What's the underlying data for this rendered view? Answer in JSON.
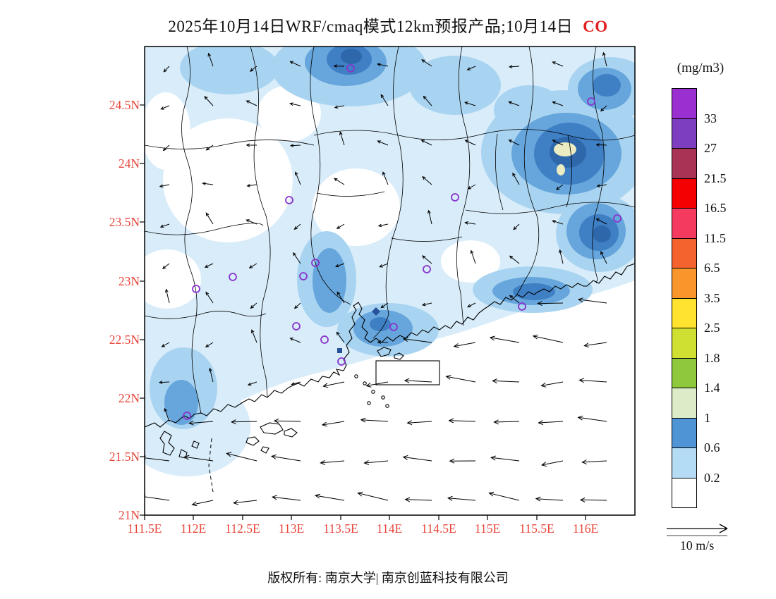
{
  "title": {
    "main": "2025年10月14日WRF/cmaq模式12km预报产品;10月14日",
    "pollutant": "CO"
  },
  "axes": {
    "y_labels": [
      "24.5N",
      "24N",
      "23.5N",
      "23N",
      "22.5N",
      "22N",
      "21.5N",
      "21N"
    ],
    "x_labels": [
      "111.5E",
      "112E",
      "112.5E",
      "113E",
      "113.5E",
      "114E",
      "114.5E",
      "115E",
      "115.5E",
      "116E"
    ]
  },
  "legend": {
    "unit": "(mg/m3)",
    "labels": [
      "33",
      "27",
      "21.5",
      "16.5",
      "11.5",
      "6.5",
      "3.5",
      "2.5",
      "1.8",
      "1.4",
      "1",
      "0.6",
      "0.2"
    ],
    "colors": [
      "#9b30d0",
      "#7d3fc0",
      "#a93355",
      "#f40000",
      "#f43a5f",
      "#f4622e",
      "#f8962c",
      "#ffe32e",
      "#cfe032",
      "#8fc83c",
      "#dcebc8",
      "#4f94d4",
      "#b5dcf5",
      "#ffffff"
    ]
  },
  "wind_scale": {
    "label": "10 m/s"
  },
  "footer": {
    "copyright": "版权所有: 南京大学| 南京创蓝科技有限公司"
  },
  "colors": {
    "axis_labels": "#e8473c",
    "title_pollutant": "#e31f1f",
    "map_fill_light_blue": "#d8ecfa",
    "map_fill_mid_blue": "#a9d4f1",
    "map_fill_dark_blue": "#4d92d2",
    "map_fill_pale_green_spot": "#ebecc1",
    "station_marker": "#8833cc"
  },
  "chart_data": {
    "type": "heatmap",
    "variable": "CO",
    "unit": "mg/m3",
    "model": "WRF/cmaq 12km",
    "forecast_date": "2025-10-14",
    "lon_range_deg_e": [
      111.5,
      116.5
    ],
    "lat_range_deg_n": [
      21,
      25
    ],
    "contour_levels": [
      0.2,
      0.6,
      1,
      1.4,
      1.8,
      2.5,
      3.5,
      6.5,
      11.5,
      16.5,
      21.5,
      27,
      33
    ],
    "displayed_value_range": [
      0,
      1.8
    ],
    "notable_maxima": [
      {
        "lon": 115.8,
        "lat": 24.1,
        "value_band": "1-1.4"
      },
      {
        "lon": 113.6,
        "lat": 24.95,
        "value_band": "0.6-1"
      },
      {
        "lon": 116.1,
        "lat": 23.45,
        "value_band": "0.6-1"
      },
      {
        "lon": 113.9,
        "lat": 22.65,
        "value_band": "0.6-1"
      }
    ],
    "wind_reference_m_s": 10,
    "legend_position": "right",
    "grid": false
  }
}
